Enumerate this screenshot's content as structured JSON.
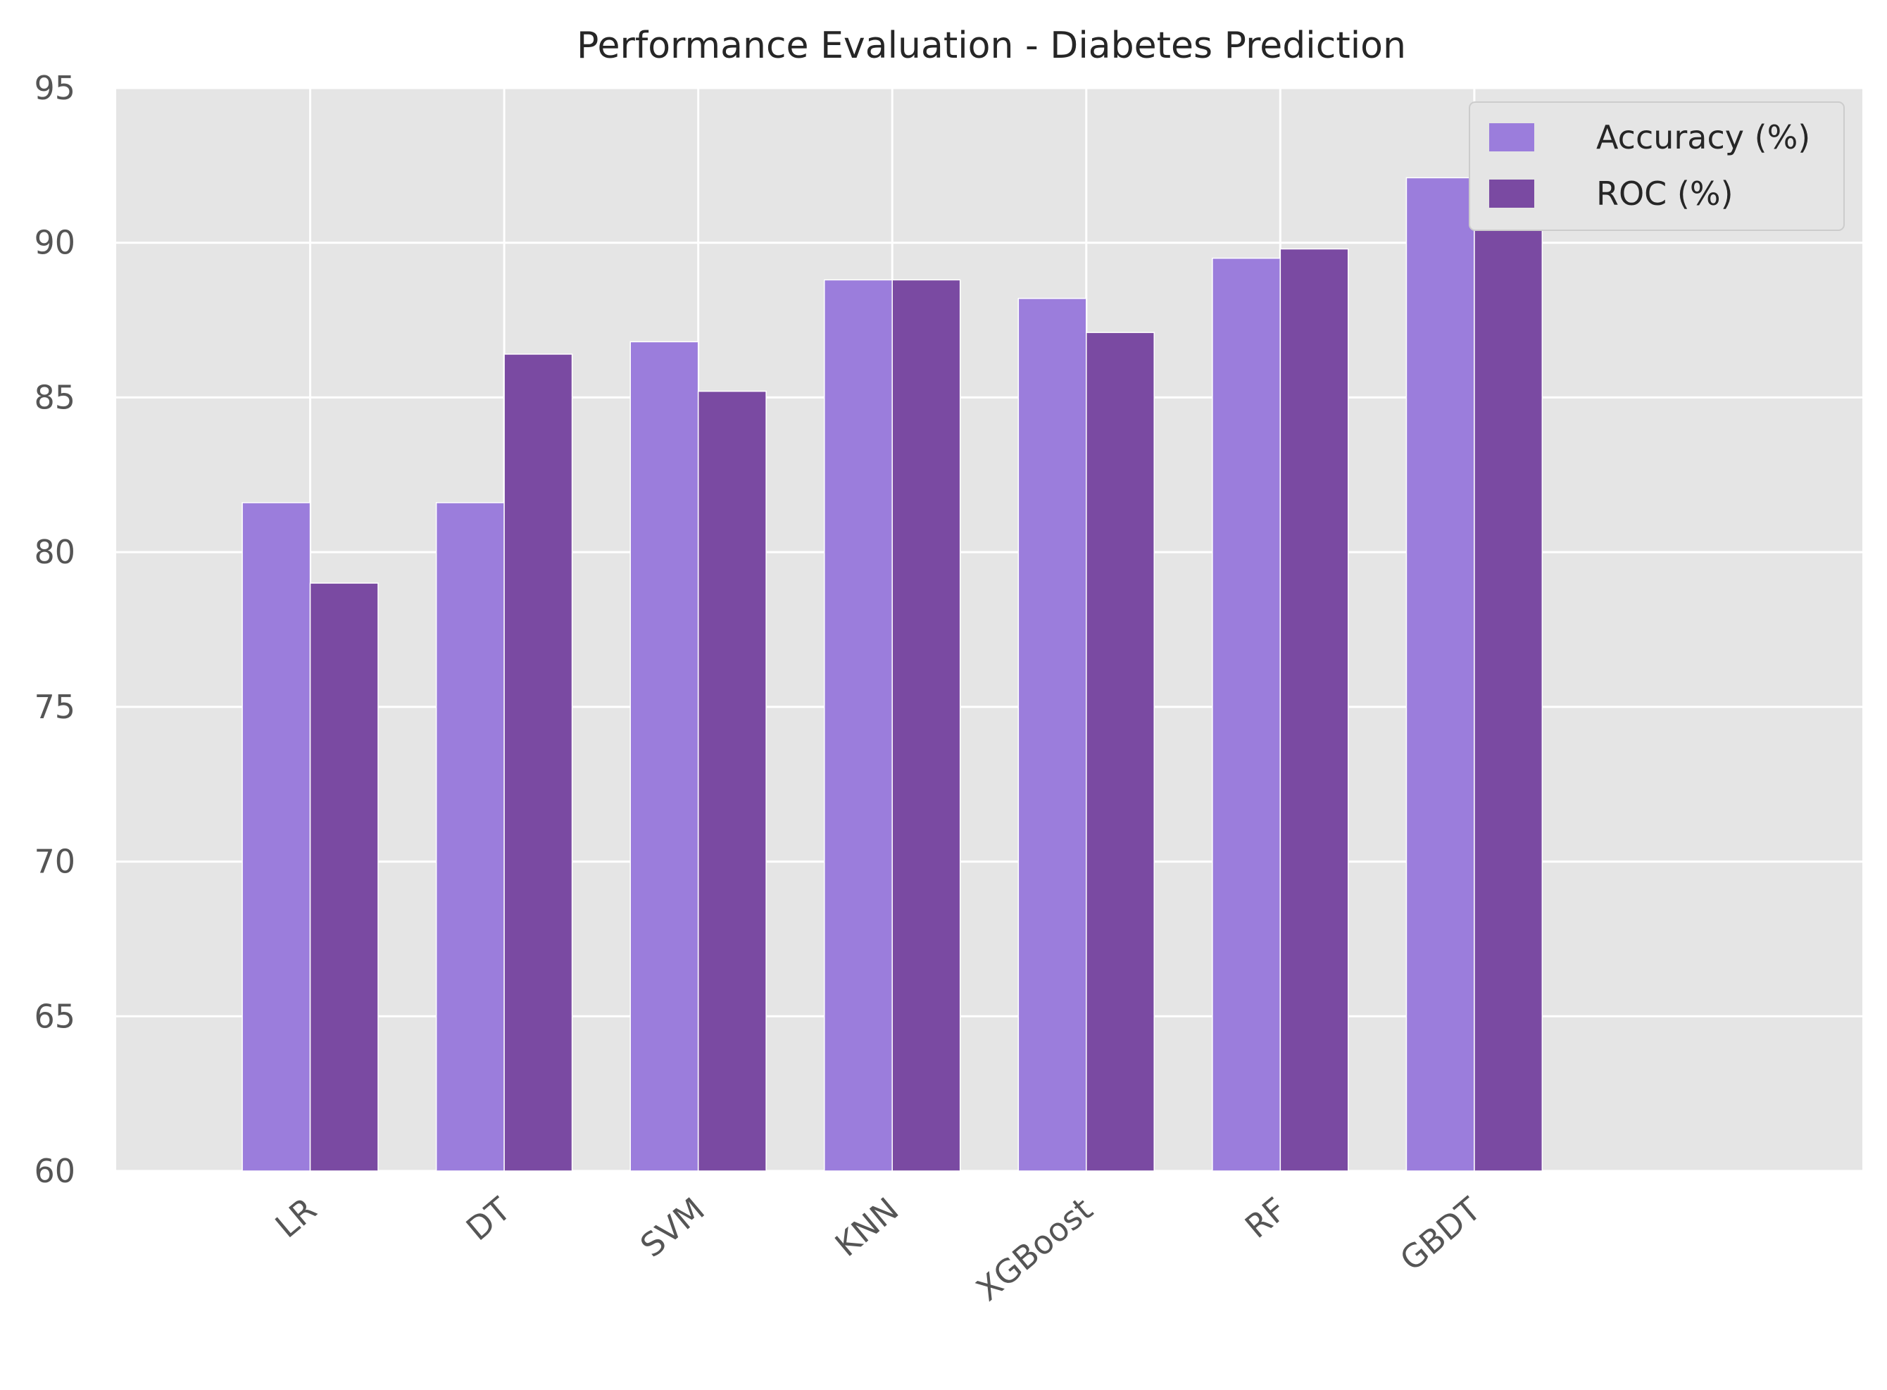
{
  "chart_data": {
    "type": "bar",
    "title": "Performance Evaluation - Diabetes Prediction",
    "xlabel": "",
    "ylabel": "",
    "categories": [
      "LR",
      "DT",
      "SVM",
      "KNN",
      "XGBoost",
      "RF",
      "GBDT"
    ],
    "series": [
      {
        "name": "Accuracy (%)",
        "color": "#9b7ddc",
        "values": [
          81.6,
          81.6,
          86.8,
          88.8,
          88.2,
          89.5,
          92.1
        ]
      },
      {
        "name": "ROC (%)",
        "color": "#7a4aa2",
        "values": [
          79.0,
          86.4,
          85.2,
          88.8,
          87.1,
          89.8,
          91.4
        ]
      }
    ],
    "ylim": [
      60,
      95
    ],
    "yticks": [
      60,
      65,
      70,
      75,
      80,
      85,
      90,
      95
    ],
    "xlim": [
      -1,
      8
    ],
    "xtick_rotation": -40,
    "grid": true,
    "background": "#e5e5e5",
    "legend_position": "upper right"
  }
}
